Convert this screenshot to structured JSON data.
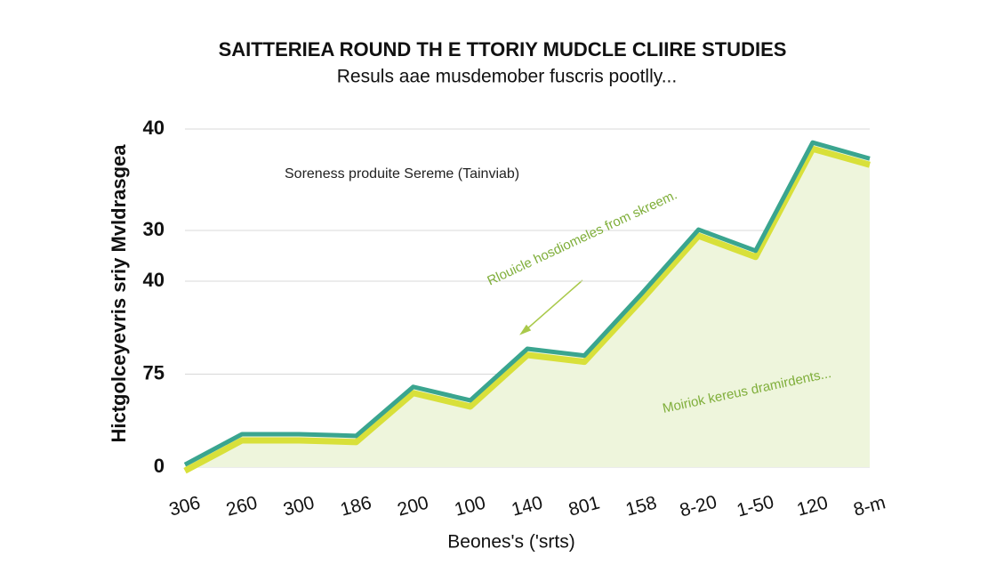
{
  "chart_data": {
    "type": "area",
    "title": "SAITTERIEA ROUND TH E TTORIY MUDCLE CLIIRE STUDIES",
    "subtitle": "Resuls aae musdemober fuscris pootlly...",
    "y_label": "Hictgolceyevris sriy Mvldrasgea",
    "x_label": "Beones's ('srts)",
    "annotations": [
      "Soreness produite Sereme (Tainviab)",
      "Rlouicle hosdiomeles from skreem.",
      "Moiriok kereus dramirdents..."
    ],
    "categories": [
      "306",
      "260",
      "300",
      "186",
      "200",
      "100",
      "140",
      "801",
      "158",
      "8-20",
      "1-50",
      "120",
      "8-m"
    ],
    "series": [
      {
        "color": "#3aa58f",
        "values": [
          0.3,
          3.9,
          3.9,
          3.7,
          9.5,
          7.9,
          14,
          13.2,
          20.5,
          28.1,
          25.6,
          38.4,
          36.5
        ]
      }
    ],
    "ylim": [
      0,
      40
    ],
    "yticks": [
      40,
      {
        "value": 28,
        "label": "30"
      },
      {
        "value": 22,
        "label": "40"
      },
      {
        "value": 11,
        "label": "75"
      },
      0
    ],
    "grid": true
  }
}
